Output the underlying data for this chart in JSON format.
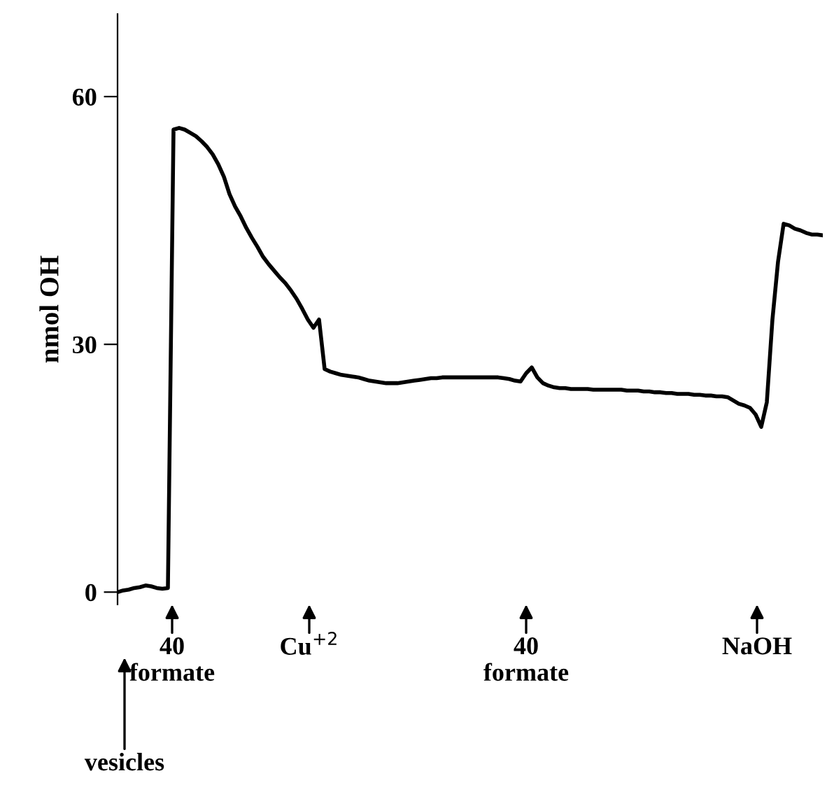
{
  "chart_data": {
    "type": "line",
    "ylabel": "nmol OH",
    "categories": [
      null,
      null,
      null,
      null,
      null,
      null,
      null,
      null,
      null,
      null,
      null,
      null,
      null,
      null,
      null,
      null,
      null,
      null,
      null,
      null,
      null,
      null,
      null,
      null,
      null,
      null,
      null,
      null,
      null,
      null,
      null,
      null,
      null,
      null,
      null,
      null,
      null,
      null,
      null,
      null,
      null,
      null,
      null,
      null,
      null,
      null,
      null,
      null,
      null,
      null,
      null,
      null,
      null,
      null,
      null,
      null,
      null,
      null,
      null,
      null,
      null,
      null,
      null,
      null,
      null,
      null,
      null,
      null,
      null,
      null,
      null,
      null,
      null,
      null,
      null,
      null,
      null,
      null,
      null,
      null,
      null,
      null,
      null,
      null,
      null,
      null,
      null,
      null,
      null,
      null,
      null,
      null,
      null,
      null,
      null,
      null,
      null,
      null,
      null,
      null,
      null,
      null,
      null,
      null,
      null,
      null,
      null,
      null,
      null,
      null,
      null,
      null,
      null,
      null,
      null,
      null,
      null,
      null,
      null,
      null,
      null,
      null,
      null,
      null,
      null,
      null,
      null
    ],
    "series": [
      {
        "color": "#000000",
        "values": [
          0,
          0.2,
          0.3,
          0.5,
          0.6,
          0.8,
          0.7,
          0.5,
          0.4,
          0.5,
          56,
          56.2,
          56,
          55.6,
          55.2,
          54.6,
          53.9,
          53,
          51.8,
          50.3,
          48.2,
          46.7,
          45.5,
          44.1,
          42.9,
          41.8,
          40.6,
          39.7,
          38.9,
          38.1,
          37.4,
          36.5,
          35.5,
          34.3,
          33,
          32,
          33,
          27,
          26.7,
          26.5,
          26.3,
          26.2,
          26.1,
          26,
          25.8,
          25.6,
          25.5,
          25.4,
          25.3,
          25.3,
          25.3,
          25.4,
          25.5,
          25.6,
          25.7,
          25.8,
          25.9,
          25.9,
          26,
          26,
          26,
          26,
          26,
          26,
          26,
          26,
          26,
          26,
          26,
          25.9,
          25.8,
          25.6,
          25.5,
          26.5,
          27.2,
          26,
          25.3,
          25,
          24.8,
          24.7,
          24.7,
          24.6,
          24.6,
          24.6,
          24.6,
          24.5,
          24.5,
          24.5,
          24.5,
          24.5,
          24.5,
          24.4,
          24.4,
          24.4,
          24.3,
          24.3,
          24.2,
          24.2,
          24.1,
          24.1,
          24,
          24,
          24,
          23.9,
          23.9,
          23.8,
          23.8,
          23.7,
          23.7,
          23.6,
          23.2,
          22.8,
          22.6,
          22.3,
          21.5,
          20,
          23,
          33,
          40,
          44.6,
          44.4,
          44,
          43.8,
          43.5,
          43.3,
          43.3,
          43.2
        ]
      }
    ],
    "ylim": [
      -1.5,
      70
    ],
    "yticks": [
      0,
      30,
      60
    ],
    "grid": false,
    "legend": false,
    "tick_labels": "y",
    "annotations": [
      "40\nformate",
      "Cu$^{+2}$",
      "40\nformate",
      "NaOH",
      "vesicles"
    ]
  }
}
